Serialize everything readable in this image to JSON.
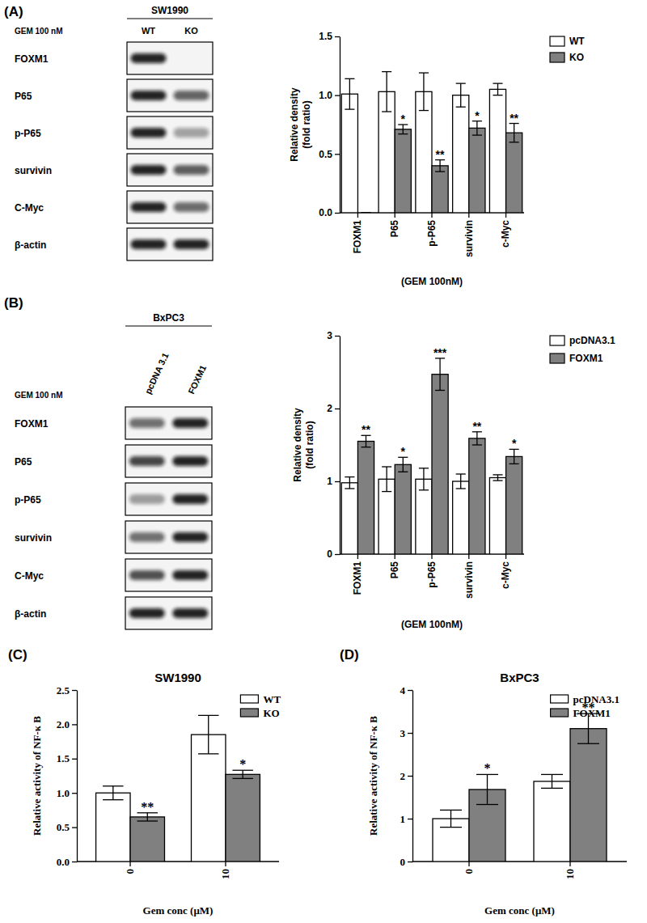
{
  "chart_data": [
    {
      "type": "bar",
      "y_label": [
        "Relative density",
        "(fold ratio)"
      ],
      "x_label": "(GEM 100nM)",
      "categories": [
        "FOXM1",
        "P65",
        "p-P65",
        "survivin",
        "c-Myc"
      ],
      "series": [
        {
          "name": "WT",
          "color": "#ffffff",
          "values": [
            1.01,
            1.03,
            1.03,
            1.0,
            1.05
          ],
          "errors": [
            0.13,
            0.17,
            0.16,
            0.1,
            0.05
          ]
        },
        {
          "name": "KO",
          "color": "#808080",
          "values": [
            0,
            0.71,
            0.4,
            0.72,
            0.68
          ],
          "errors": [
            0,
            0.04,
            0.05,
            0.06,
            0.08
          ],
          "annotations": [
            null,
            "*",
            "**",
            "*",
            "**"
          ]
        }
      ],
      "ylim": [
        0,
        1.5
      ],
      "yticks": [
        {
          "value": 0,
          "label": "0.0"
        },
        0.5,
        {
          "value": 1,
          "label": "1.0"
        },
        1.5
      ],
      "legend": "right"
    },
    {
      "type": "bar",
      "y_label": [
        "Relative density",
        "(fold ratio)"
      ],
      "x_label": "(GEM 100nM)",
      "categories": [
        "FOXM1",
        "P65",
        "p-P65",
        "survivin",
        "c-Myc"
      ],
      "series": [
        {
          "name": "pcDNA3.1",
          "color": "#ffffff",
          "values": [
            0.98,
            1.03,
            1.03,
            1.0,
            1.05
          ],
          "errors": [
            0.08,
            0.17,
            0.15,
            0.1,
            0.04
          ]
        },
        {
          "name": "FOXM1",
          "color": "#808080",
          "values": [
            1.55,
            1.23,
            2.47,
            1.59,
            1.34
          ],
          "errors": [
            0.08,
            0.1,
            0.22,
            0.09,
            0.1
          ],
          "annotations": [
            "**",
            "*",
            "***",
            "**",
            "*"
          ]
        }
      ],
      "ylim": [
        0,
        3
      ],
      "yticks": [
        0,
        1,
        2,
        3
      ],
      "legend": "right"
    },
    {
      "type": "bar",
      "panel_label": "(C)",
      "title": "SW1990",
      "y_label": "Relative activity of NF-κ B",
      "x_label": "Gem conc (μM)",
      "categories": [
        "0",
        "10"
      ],
      "series": [
        {
          "name": "WT",
          "color": "#ffffff",
          "values": [
            1.0,
            1.85
          ],
          "errors": [
            0.1,
            0.28
          ]
        },
        {
          "name": "KO",
          "color": "#808080",
          "values": [
            0.65,
            1.27
          ],
          "errors": [
            0.06,
            0.06
          ],
          "annotations": [
            "**",
            "*"
          ]
        }
      ],
      "ylim": [
        0,
        2.5
      ],
      "yticks": [
        {
          "value": 0,
          "label": "0.0"
        },
        0.5,
        {
          "value": 1,
          "label": "1.0"
        },
        1.5,
        {
          "value": 2,
          "label": "2.0"
        },
        2.5
      ],
      "legend": "upper right"
    },
    {
      "type": "bar",
      "panel_label": "(D)",
      "title": "BxPC3",
      "y_label": "Relative activity of NF-κ B",
      "x_label": "Gem conc (μM)",
      "categories": [
        "0",
        "10"
      ],
      "series": [
        {
          "name": "pcDNA3.1",
          "color": "#ffffff",
          "values": [
            1.0,
            1.87
          ],
          "errors": [
            0.2,
            0.16
          ]
        },
        {
          "name": "FOXM1",
          "color": "#808080",
          "values": [
            1.68,
            3.1
          ],
          "errors": [
            0.35,
            0.35
          ],
          "annotations": [
            "*",
            "**"
          ]
        }
      ],
      "ylim": [
        0,
        4
      ],
      "yticks": [
        0,
        1,
        2,
        3,
        4
      ],
      "legend": "upper right"
    }
  ],
  "blots": [
    {
      "panel_label": "(A)",
      "cell_line": "SW1990",
      "treatment": "GEM 100 nM",
      "lanes": [
        "WT",
        "KO"
      ],
      "rows": [
        "FOXM1",
        "P65",
        "p-P65",
        "survivin",
        "C-Myc",
        "β-actin"
      ]
    },
    {
      "panel_label": "(B)",
      "cell_line": "BxPC3",
      "treatment": "GEM 100 nM",
      "lanes": [
        "pcDNA 3.1",
        "FOXM1"
      ],
      "rows": [
        "FOXM1",
        "P65",
        "p-P65",
        "survivin",
        "C-Myc",
        "β-actin"
      ]
    }
  ]
}
